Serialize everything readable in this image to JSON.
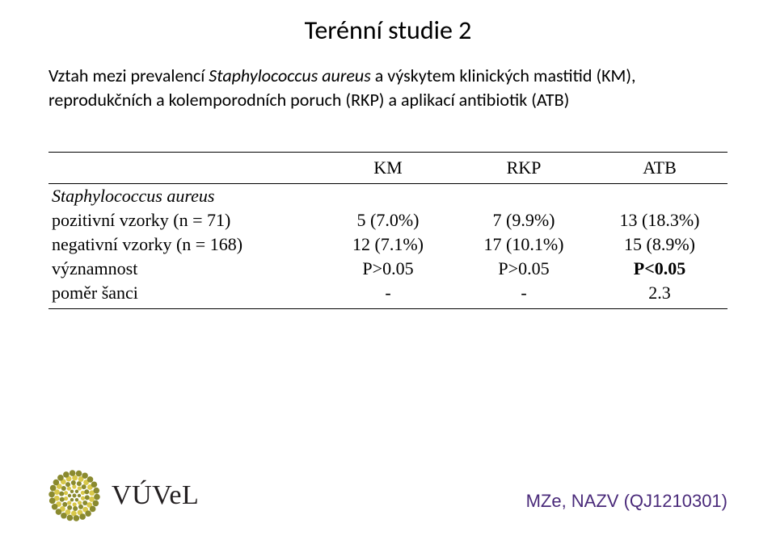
{
  "title": "Terénní studie 2",
  "subtitle_pre": "Vztah mezi prevalencí ",
  "subtitle_ital": "Staphylococcus aureus",
  "subtitle_post": " a výskytem klinických mastitid (KM), reprodukčních a kolemporodních poruch (RKP) a aplikací antibiotik (ATB)",
  "table": {
    "columns": [
      "KM",
      "RKP",
      "ATB"
    ],
    "species_row": "Staphylococcus aureus",
    "rows": [
      {
        "label": "pozitivní vzorky (n = 71)",
        "cells": [
          "5 (7.0%)",
          "7 (9.9%)",
          "13 (18.3%)"
        ]
      },
      {
        "label": "negativní vzorky (n = 168)",
        "cells": [
          "12 (7.1%)",
          "17 (10.1%)",
          "15 (8.9%)"
        ]
      },
      {
        "label": "významnost",
        "cells": [
          "P>0.05",
          "P>0.05",
          "P<0.05"
        ],
        "bold_last": true
      },
      {
        "label": "poměr šanci",
        "cells": [
          "-",
          "-",
          "2.3"
        ]
      }
    ],
    "col_widths": [
      "40%",
      "20%",
      "20%",
      "20%"
    ]
  },
  "logo_text": "VÚVeL",
  "footer_note": "MZe, NAZV (QJ1210301)",
  "colors": {
    "flower_olive": "#8a8a2f",
    "flower_yellow": "#d8c84a",
    "footer_text": "#4a2a7a",
    "logo_text": "#231f20"
  }
}
